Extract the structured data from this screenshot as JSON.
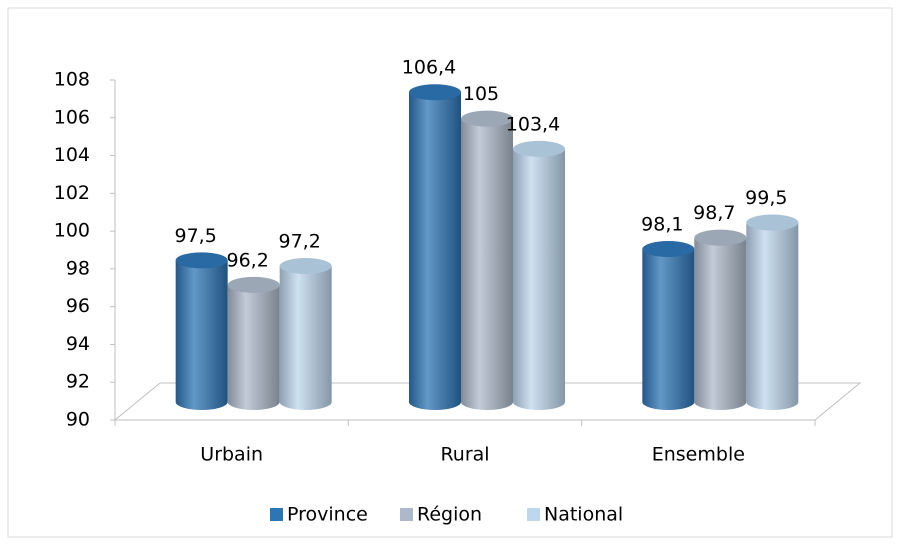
{
  "chart_data": {
    "type": "bar3d",
    "categories": [
      "Urbain",
      "Rural",
      "Ensemble"
    ],
    "series": [
      {
        "name": "Province",
        "color": "#2e75b6",
        "values": [
          97.5,
          106.4,
          98.1
        ],
        "value_labels": [
          "97,5",
          "106,4",
          "98,1"
        ]
      },
      {
        "name": "Région",
        "color": "#adb9ca",
        "values": [
          96.2,
          105,
          98.7
        ],
        "value_labels": [
          "96,2",
          "105",
          "98,7"
        ]
      },
      {
        "name": "National",
        "color": "#bdd7ee",
        "values": [
          97.2,
          103.4,
          99.5
        ],
        "value_labels": [
          "97,2",
          "103,4",
          "99,5"
        ]
      }
    ],
    "ylim": [
      90,
      108
    ],
    "yticks": [
      90,
      92,
      94,
      96,
      98,
      100,
      102,
      104,
      106,
      108
    ],
    "legend": "bottom"
  }
}
